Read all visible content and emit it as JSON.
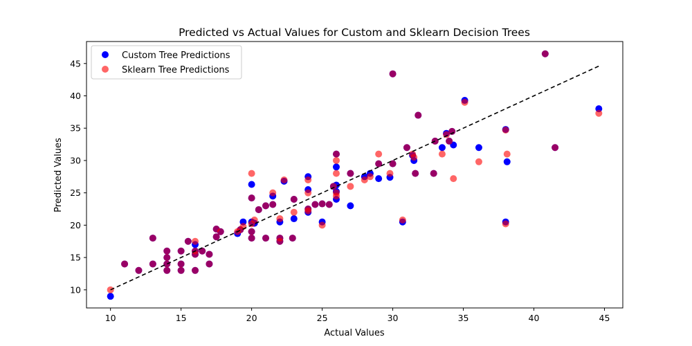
{
  "chart_data": {
    "type": "scatter",
    "title": "Predicted vs Actual Values for Custom and Sklearn Decision Trees",
    "xlabel": "Actual Values",
    "ylabel": "Predicted Values",
    "xlim": [
      8.3,
      46.3
    ],
    "ylim": [
      7.2,
      48.4
    ],
    "xticks": [
      10,
      15,
      20,
      25,
      30,
      35,
      40,
      45
    ],
    "yticks": [
      10,
      15,
      20,
      25,
      30,
      35,
      40,
      45
    ],
    "grid": false,
    "legend_position": "top-left",
    "reference_line": {
      "style": "dashed",
      "color": "#000000",
      "from": [
        10,
        10
      ],
      "to": [
        44.6,
        44.6
      ]
    },
    "series": [
      {
        "name": "Custom Tree Predictions",
        "color": "#0000ff",
        "alpha": 1.0,
        "points": [
          [
            10,
            9
          ],
          [
            11,
            14
          ],
          [
            12,
            13
          ],
          [
            13,
            14
          ],
          [
            13,
            18
          ],
          [
            14,
            13
          ],
          [
            14,
            14
          ],
          [
            14,
            15
          ],
          [
            14,
            16
          ],
          [
            15,
            13
          ],
          [
            15,
            14
          ],
          [
            15,
            16
          ],
          [
            15.5,
            17.5
          ],
          [
            16,
            13
          ],
          [
            16,
            15.5
          ],
          [
            16,
            16
          ],
          [
            16,
            17
          ],
          [
            16.5,
            16
          ],
          [
            17,
            14
          ],
          [
            17,
            15.5
          ],
          [
            17.5,
            18.2
          ],
          [
            17.5,
            19.4
          ],
          [
            17.8,
            19
          ],
          [
            19,
            18.7
          ],
          [
            19.2,
            19.3
          ],
          [
            19.4,
            20.5
          ],
          [
            20,
            18
          ],
          [
            20,
            19
          ],
          [
            20,
            20.5
          ],
          [
            20,
            24.2
          ],
          [
            20,
            26.3
          ],
          [
            20.2,
            20.3
          ],
          [
            20.5,
            22.4
          ],
          [
            21,
            18
          ],
          [
            21,
            23
          ],
          [
            21.5,
            23.2
          ],
          [
            21.5,
            24.5
          ],
          [
            22,
            17.5
          ],
          [
            22,
            18
          ],
          [
            22,
            20.5
          ],
          [
            22.3,
            26.8
          ],
          [
            22.9,
            18
          ],
          [
            23,
            21
          ],
          [
            23,
            24
          ],
          [
            24,
            22
          ],
          [
            24,
            22.5
          ],
          [
            24,
            25.5
          ],
          [
            24,
            27.5
          ],
          [
            24.5,
            23.2
          ],
          [
            25,
            20.5
          ],
          [
            25,
            23.3
          ],
          [
            25.5,
            23.2
          ],
          [
            25.8,
            26
          ],
          [
            26,
            24
          ],
          [
            26,
            25.2
          ],
          [
            26,
            26.2
          ],
          [
            26,
            29
          ],
          [
            26,
            31
          ],
          [
            27,
            23
          ],
          [
            27,
            28
          ],
          [
            28,
            27.5
          ],
          [
            28.4,
            28
          ],
          [
            29,
            27.2
          ],
          [
            29,
            29.5
          ],
          [
            29.8,
            27.4
          ],
          [
            30,
            29.5
          ],
          [
            30,
            43.4
          ],
          [
            30.7,
            20.5
          ],
          [
            31,
            32
          ],
          [
            31.4,
            30.8
          ],
          [
            31.5,
            30
          ],
          [
            31.6,
            28
          ],
          [
            31.8,
            37
          ],
          [
            32.9,
            28
          ],
          [
            33,
            33
          ],
          [
            33.5,
            32
          ],
          [
            33.8,
            34.2
          ],
          [
            34,
            33
          ],
          [
            34.2,
            34.5
          ],
          [
            34.3,
            32.4
          ],
          [
            35.1,
            39.3
          ],
          [
            36.1,
            32
          ],
          [
            38,
            20.5
          ],
          [
            38,
            34.8
          ],
          [
            38.1,
            29.8
          ],
          [
            40.8,
            46.5
          ],
          [
            41.5,
            32
          ],
          [
            44.6,
            38
          ]
        ]
      },
      {
        "name": "Sklearn Tree Predictions",
        "color": "#ff0000",
        "alpha": 0.6,
        "points": [
          [
            10,
            10
          ],
          [
            11,
            14
          ],
          [
            12,
            13
          ],
          [
            13,
            14
          ],
          [
            13,
            18
          ],
          [
            14,
            13
          ],
          [
            14,
            14
          ],
          [
            14,
            15
          ],
          [
            14,
            16
          ],
          [
            15,
            13
          ],
          [
            15,
            14
          ],
          [
            15,
            16
          ],
          [
            15.5,
            17.5
          ],
          [
            16,
            13
          ],
          [
            16,
            15.5
          ],
          [
            16,
            16
          ],
          [
            16,
            17.5
          ],
          [
            16.5,
            16
          ],
          [
            17,
            14
          ],
          [
            17,
            15.5
          ],
          [
            17.5,
            18.2
          ],
          [
            17.5,
            19.4
          ],
          [
            17.8,
            19
          ],
          [
            19,
            19
          ],
          [
            19.2,
            19.3
          ],
          [
            19.4,
            19.8
          ],
          [
            20,
            18
          ],
          [
            20,
            19
          ],
          [
            20,
            20.2
          ],
          [
            20,
            24.2
          ],
          [
            20,
            28
          ],
          [
            20.2,
            20.8
          ],
          [
            20.5,
            22.4
          ],
          [
            21,
            18
          ],
          [
            21,
            23
          ],
          [
            21.5,
            23.2
          ],
          [
            21.5,
            25
          ],
          [
            22,
            17.5
          ],
          [
            22,
            18
          ],
          [
            22,
            21
          ],
          [
            22.3,
            27
          ],
          [
            22.9,
            18
          ],
          [
            23,
            22
          ],
          [
            23,
            24
          ],
          [
            24,
            22.2
          ],
          [
            24,
            22.5
          ],
          [
            24,
            25
          ],
          [
            24,
            27
          ],
          [
            24.5,
            23.2
          ],
          [
            25,
            20
          ],
          [
            25,
            23.3
          ],
          [
            25.5,
            23.2
          ],
          [
            25.8,
            26
          ],
          [
            26,
            24.5
          ],
          [
            26,
            25
          ],
          [
            26,
            28
          ],
          [
            26,
            30
          ],
          [
            26,
            31
          ],
          [
            27,
            26
          ],
          [
            27,
            28
          ],
          [
            28,
            27
          ],
          [
            28.4,
            27.5
          ],
          [
            29,
            31
          ],
          [
            29,
            29.5
          ],
          [
            29.8,
            28
          ],
          [
            30,
            29.5
          ],
          [
            30,
            43.4
          ],
          [
            30.7,
            20.8
          ],
          [
            31,
            32
          ],
          [
            31.4,
            31
          ],
          [
            31.5,
            30.5
          ],
          [
            31.6,
            28
          ],
          [
            31.8,
            37
          ],
          [
            32.9,
            28
          ],
          [
            33,
            33
          ],
          [
            33.5,
            31
          ],
          [
            33.8,
            34
          ],
          [
            34,
            33
          ],
          [
            34.2,
            34.5
          ],
          [
            34.3,
            27.2
          ],
          [
            35.1,
            39
          ],
          [
            36.1,
            29.8
          ],
          [
            38,
            20.2
          ],
          [
            38,
            34.7
          ],
          [
            38.1,
            31
          ],
          [
            40.8,
            46.5
          ],
          [
            41.5,
            32
          ],
          [
            44.6,
            37.3
          ]
        ]
      }
    ]
  }
}
